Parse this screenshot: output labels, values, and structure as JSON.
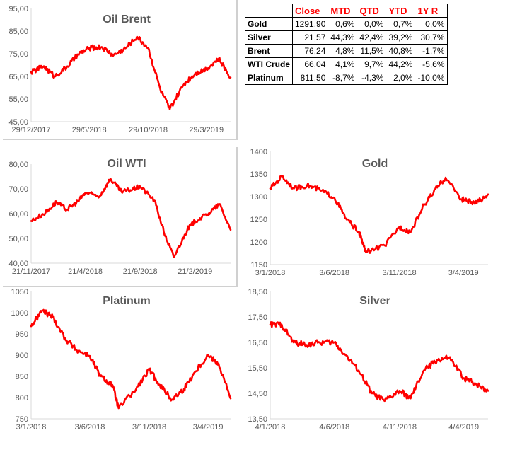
{
  "table": {
    "headers": [
      "",
      "Close",
      "MTD",
      "QTD",
      "YTD",
      "1Y R"
    ],
    "rows": [
      [
        "Gold",
        "1291,90",
        "0,6%",
        "0,0%",
        "0,7%",
        "0,0%"
      ],
      [
        "Silver",
        "21,57",
        "44,3%",
        "42,4%",
        "39,2%",
        "30,7%"
      ],
      [
        "Brent",
        "76,24",
        "4,8%",
        "11,5%",
        "40,8%",
        "-1,7%"
      ],
      [
        "WTI Crude",
        "66,04",
        "4,1%",
        "9,7%",
        "44,2%",
        "-5,6%"
      ],
      [
        "Platinum",
        "811,50",
        "-8,7%",
        "-4,3%",
        "2,0%",
        "-10,0%"
      ]
    ]
  },
  "colors": {
    "series": "#ff0000",
    "header_text": "#ff0000",
    "title": "#595959"
  },
  "chart_data": [
    {
      "id": "brent",
      "type": "line",
      "title": "Oil Brent",
      "ylim": [
        45,
        95
      ],
      "yticks": [
        "45,00",
        "55,00",
        "65,00",
        "75,00",
        "85,00",
        "95,00"
      ],
      "xticks": [
        "29/12/2017",
        "29/5/2018",
        "29/10/2018",
        "29/3/2019"
      ],
      "x": [
        "29/12/2017",
        "31/1/2018",
        "28/2/2018",
        "31/3/2018",
        "30/4/2018",
        "29/5/2018",
        "30/6/2018",
        "31/7/2018",
        "31/8/2018",
        "30/9/2018",
        "29/10/2018",
        "30/11/2018",
        "24/12/2018",
        "31/1/2019",
        "28/2/2019",
        "29/3/2019",
        "30/4/2019",
        "31/5/2019"
      ],
      "values": [
        66.9,
        69.5,
        65.0,
        69.0,
        74.7,
        77.5,
        78.0,
        74.3,
        77.4,
        82.5,
        77.6,
        59.0,
        50.5,
        61.9,
        66.3,
        68.4,
        72.8,
        64.5
      ]
    },
    {
      "id": "wti",
      "type": "line",
      "title": "Oil WTI",
      "ylim": [
        40,
        80
      ],
      "yticks": [
        "40,00",
        "50,00",
        "60,00",
        "70,00",
        "80,00"
      ],
      "xticks": [
        "21/11/2017",
        "21/4/2018",
        "21/9/2018",
        "21/2/2019"
      ],
      "x": [
        "21/11/2017",
        "31/12/2017",
        "31/1/2018",
        "28/2/2018",
        "31/3/2018",
        "21/4/2018",
        "31/5/2018",
        "30/6/2018",
        "31/7/2018",
        "31/8/2018",
        "21/9/2018",
        "31/10/2018",
        "30/11/2018",
        "24/12/2018",
        "31/1/2019",
        "21/2/2019",
        "31/3/2019",
        "30/4/2019",
        "31/5/2019"
      ],
      "values": [
        57.0,
        60.4,
        64.7,
        61.6,
        64.9,
        68.4,
        67.0,
        74.1,
        68.8,
        69.8,
        71.0,
        65.3,
        50.9,
        42.5,
        53.8,
        57.0,
        60.1,
        63.9,
        53.5
      ]
    },
    {
      "id": "gold",
      "type": "line",
      "title": "Gold",
      "ylim": [
        1150,
        1400
      ],
      "yticks": [
        "1150",
        "1200",
        "1250",
        "1300",
        "1350",
        "1400"
      ],
      "xticks": [
        "3/1/2018",
        "3/6/2018",
        "3/11/2018",
        "3/4/2019"
      ],
      "x": [
        "3/1/2018",
        "31/1/2018",
        "28/2/2018",
        "31/3/2018",
        "30/4/2018",
        "3/6/2018",
        "30/6/2018",
        "31/7/2018",
        "16/8/2018",
        "30/9/2018",
        "3/11/2018",
        "30/11/2018",
        "31/12/2018",
        "31/1/2019",
        "20/2/2019",
        "31/3/2019",
        "3/4/2019",
        "30/4/2019",
        "31/5/2019"
      ],
      "values": [
        1318,
        1345,
        1318,
        1325,
        1315,
        1298,
        1252,
        1222,
        1178,
        1192,
        1233,
        1222,
        1282,
        1320,
        1342,
        1292,
        1294,
        1284,
        1305
      ]
    },
    {
      "id": "platinum",
      "type": "line",
      "title": "Platinum",
      "ylim": [
        750,
        1050
      ],
      "yticks": [
        "750",
        "800",
        "850",
        "900",
        "950",
        "1000",
        "1050"
      ],
      "xticks": [
        "3/1/2018",
        "3/6/2018",
        "3/11/2018",
        "3/4/2019"
      ],
      "x": [
        "3/1/2018",
        "31/1/2018",
        "28/2/2018",
        "31/3/2018",
        "30/4/2018",
        "3/6/2018",
        "30/6/2018",
        "31/7/2018",
        "16/8/2018",
        "30/9/2018",
        "3/11/2018",
        "30/11/2018",
        "31/12/2018",
        "31/1/2019",
        "28/2/2019",
        "3/4/2019",
        "30/4/2019",
        "31/5/2019"
      ],
      "values": [
        968,
        1005,
        990,
        940,
        912,
        898,
        850,
        830,
        775,
        820,
        865,
        830,
        795,
        820,
        860,
        900,
        880,
        798
      ]
    },
    {
      "id": "silver",
      "type": "line",
      "title": "Silver",
      "ylim": [
        13.5,
        18.5
      ],
      "yticks": [
        "13,50",
        "14,50",
        "15,50",
        "16,50",
        "17,50",
        "18,50"
      ],
      "xticks": [
        "4/1/2018",
        "4/6/2018",
        "4/11/2018",
        "4/4/2019"
      ],
      "x": [
        "4/1/2018",
        "31/1/2018",
        "28/2/2018",
        "31/3/2018",
        "30/4/2018",
        "4/6/2018",
        "30/6/2018",
        "31/7/2018",
        "31/8/2018",
        "30/9/2018",
        "4/11/2018",
        "30/11/2018",
        "31/12/2018",
        "31/1/2019",
        "28/2/2019",
        "4/4/2019",
        "30/4/2019",
        "31/5/2019"
      ],
      "values": [
        17.2,
        17.2,
        16.5,
        16.4,
        16.5,
        16.5,
        16.0,
        15.4,
        14.5,
        14.2,
        14.6,
        14.3,
        15.4,
        15.8,
        15.9,
        15.1,
        14.9,
        14.6
      ]
    }
  ]
}
